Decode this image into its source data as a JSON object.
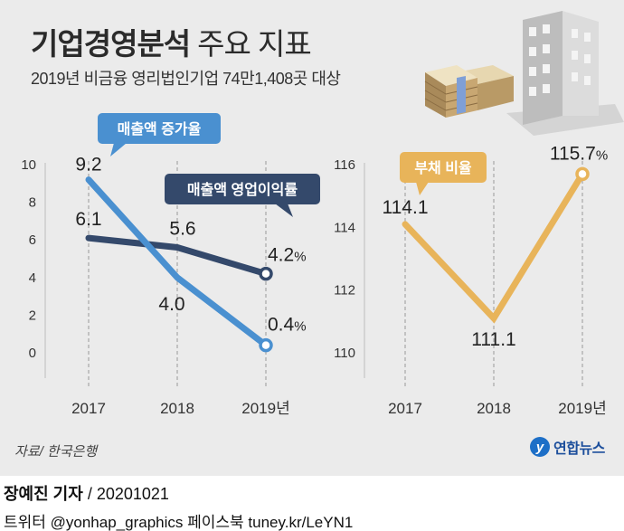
{
  "header": {
    "title_bold": "기업경영분석",
    "title_light": "주요 지표",
    "subtitle": "2019년 비금융 영리법인기업 74만1,408곳 대상"
  },
  "source": "자료/ 한국은행",
  "logo_text": "연합뉴스",
  "logo_mark": "y",
  "footer": {
    "reporter": "장예진 기자",
    "date": " / 20201021",
    "social": "트위터 @yonhap_graphics  페이스북 tuney.kr/LeYN1"
  },
  "colors": {
    "sales_growth": "#4a90d0",
    "operating_margin": "#34496b",
    "debt_ratio": "#e8b45a",
    "background": "#ebebeb"
  },
  "chart_data": [
    {
      "type": "line",
      "categories": [
        "2017",
        "2018",
        "2019년"
      ],
      "yticks": [
        0,
        2,
        4,
        6,
        8,
        10
      ],
      "ylim": [
        0,
        10
      ],
      "grid": "vertical dashed",
      "series": [
        {
          "name": "매출액 증가율",
          "values": [
            9.2,
            4.0,
            0.4
          ],
          "labels": [
            "9.2",
            "4.0",
            "0.4"
          ],
          "last_suffix": "%"
        },
        {
          "name": "매출액 영업이익률",
          "values": [
            6.1,
            5.6,
            4.2
          ],
          "labels": [
            "6.1",
            "5.6",
            "4.2"
          ],
          "last_suffix": "%"
        }
      ]
    },
    {
      "type": "line",
      "categories": [
        "2017",
        "2018",
        "2019년"
      ],
      "yticks": [
        110,
        112,
        114,
        116
      ],
      "ylim": [
        110,
        116
      ],
      "grid": "vertical dashed",
      "series": [
        {
          "name": "부채 비율",
          "values": [
            114.1,
            111.1,
            115.7
          ],
          "labels": [
            "114.1",
            "111.1",
            "115.7"
          ],
          "last_suffix": "%"
        }
      ]
    }
  ]
}
